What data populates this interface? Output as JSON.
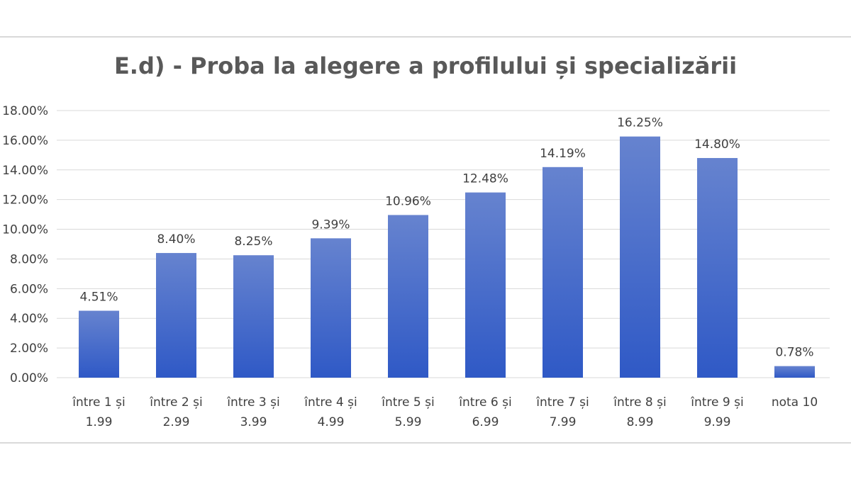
{
  "chart_data": {
    "type": "bar",
    "title": "E.d) - Proba la alegere a profilului și specializării",
    "categories": [
      [
        "între 1 și",
        "1.99"
      ],
      [
        "între 2 și",
        "2.99"
      ],
      [
        "între 3 și",
        "3.99"
      ],
      [
        "între 4 și",
        "4.99"
      ],
      [
        "între 5 și",
        "5.99"
      ],
      [
        "între 6 și",
        "6.99"
      ],
      [
        "între 7 și",
        "7.99"
      ],
      [
        "între 8 și",
        "8.99"
      ],
      [
        "între 9 și",
        "9.99"
      ],
      [
        "nota 10"
      ]
    ],
    "values": [
      4.51,
      8.4,
      8.25,
      9.39,
      10.96,
      12.48,
      14.19,
      16.25,
      14.8,
      0.78
    ],
    "data_labels": [
      "4.51%",
      "8.40%",
      "8.25%",
      "9.39%",
      "10.96%",
      "12.48%",
      "14.19%",
      "16.25%",
      "14.80%",
      "0.78%"
    ],
    "y_ticks": [
      0,
      2,
      4,
      6,
      8,
      10,
      12,
      14,
      16,
      18
    ],
    "y_tick_labels": [
      "0.00%",
      "2.00%",
      "4.00%",
      "6.00%",
      "8.00%",
      "10.00%",
      "12.00%",
      "14.00%",
      "16.00%",
      "18.00%"
    ],
    "ylim": [
      0,
      18
    ],
    "grid": true,
    "legend": "none",
    "bar_color_top": "#6683cf",
    "bar_color_bottom": "#2f59c6"
  }
}
